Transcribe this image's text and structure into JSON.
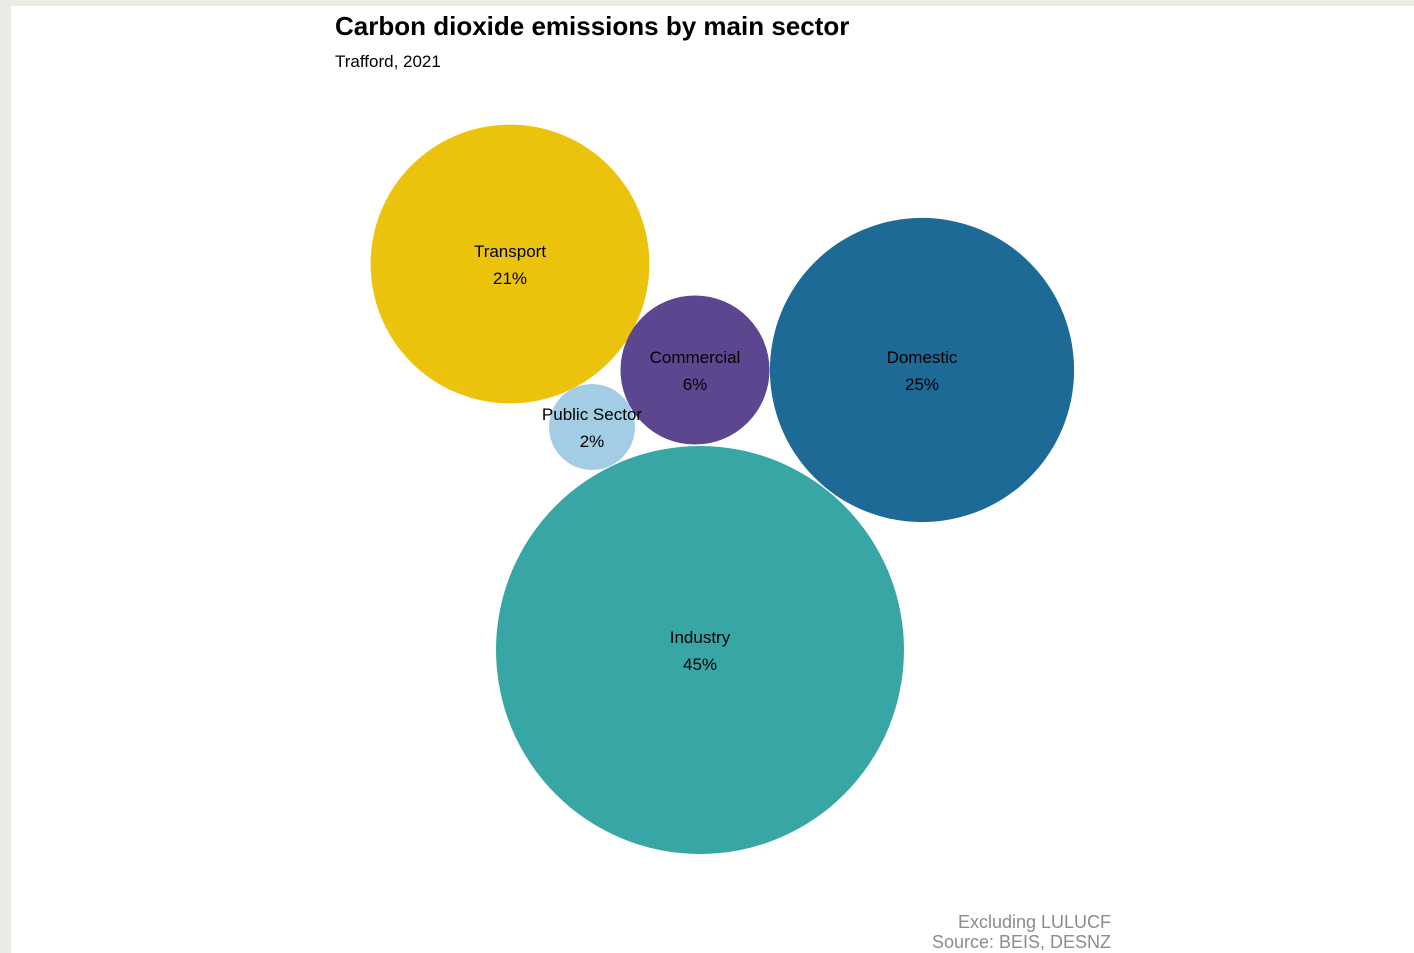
{
  "chart_data": {
    "type": "bubble",
    "title": "Carbon dioxide emissions by main sector",
    "subtitle": "Trafford, 2021",
    "caption_lines": [
      "Excluding LULUCF",
      "Source: BEIS, DESNZ"
    ],
    "unit": "%",
    "series": [
      {
        "name": "Industry",
        "value": 45,
        "color": "#39a6a6"
      },
      {
        "name": "Domestic",
        "value": 25,
        "color": "#1e6a96"
      },
      {
        "name": "Transport",
        "value": 21,
        "color": "#ebc30c"
      },
      {
        "name": "Commercial",
        "value": 6,
        "color": "#5d4690"
      },
      {
        "name": "Public Sector",
        "value": 2,
        "color": "#a2cde4"
      }
    ]
  }
}
